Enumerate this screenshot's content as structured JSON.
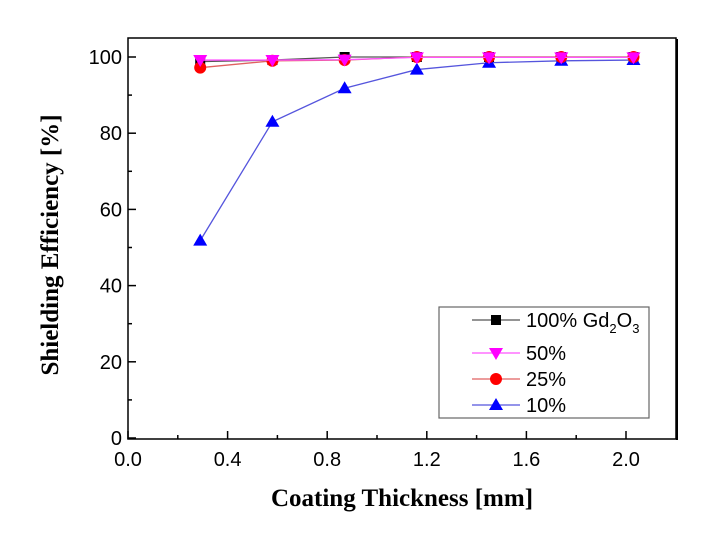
{
  "chart_data": {
    "type": "line",
    "title": "",
    "xlabel": "Coating Thickness [mm]",
    "ylabel": "Shielding Efficiency [%]",
    "xlim": [
      0.0,
      2.2
    ],
    "ylim": [
      0,
      105
    ],
    "xticks": [
      "0.0",
      "0.4",
      "0.8",
      "1.2",
      "1.6",
      "2.0"
    ],
    "xtick_values": [
      0.0,
      0.4,
      0.8,
      1.2,
      1.6,
      2.0
    ],
    "yticks": [
      "0",
      "20",
      "40",
      "60",
      "80",
      "100"
    ],
    "ytick_values": [
      0,
      20,
      40,
      60,
      80,
      100
    ],
    "grid": false,
    "legend_position": "bottom-right",
    "x": [
      0.29,
      0.58,
      0.87,
      1.16,
      1.45,
      1.74,
      2.03
    ],
    "series": [
      {
        "name": "100% Gd2O3",
        "label_main": "100% Gd",
        "label_sub1": "2",
        "label_mid": "O",
        "label_sub2": "3",
        "marker": "square",
        "color": "#000000",
        "line_color": "#555555",
        "values": [
          98.8,
          99.2,
          100.0,
          100.0,
          100.0,
          100.0,
          100.0
        ]
      },
      {
        "name": "50%",
        "marker": "triangle-down",
        "color": "#ff00ff",
        "line_color": "#ff55ff",
        "values": [
          99.2,
          99.2,
          99.3,
          99.9,
          99.9,
          99.9,
          99.9
        ]
      },
      {
        "name": "25%",
        "marker": "circle",
        "color": "#ff0000",
        "line_color": "#e06060",
        "values": [
          97.2,
          99.0,
          99.2,
          100.0,
          100.0,
          100.0,
          100.0
        ]
      },
      {
        "name": "10%",
        "marker": "triangle-up",
        "color": "#0000ff",
        "line_color": "#5555dd",
        "values": [
          51.8,
          83.0,
          91.8,
          96.7,
          98.5,
          99.0,
          99.2
        ]
      }
    ]
  }
}
